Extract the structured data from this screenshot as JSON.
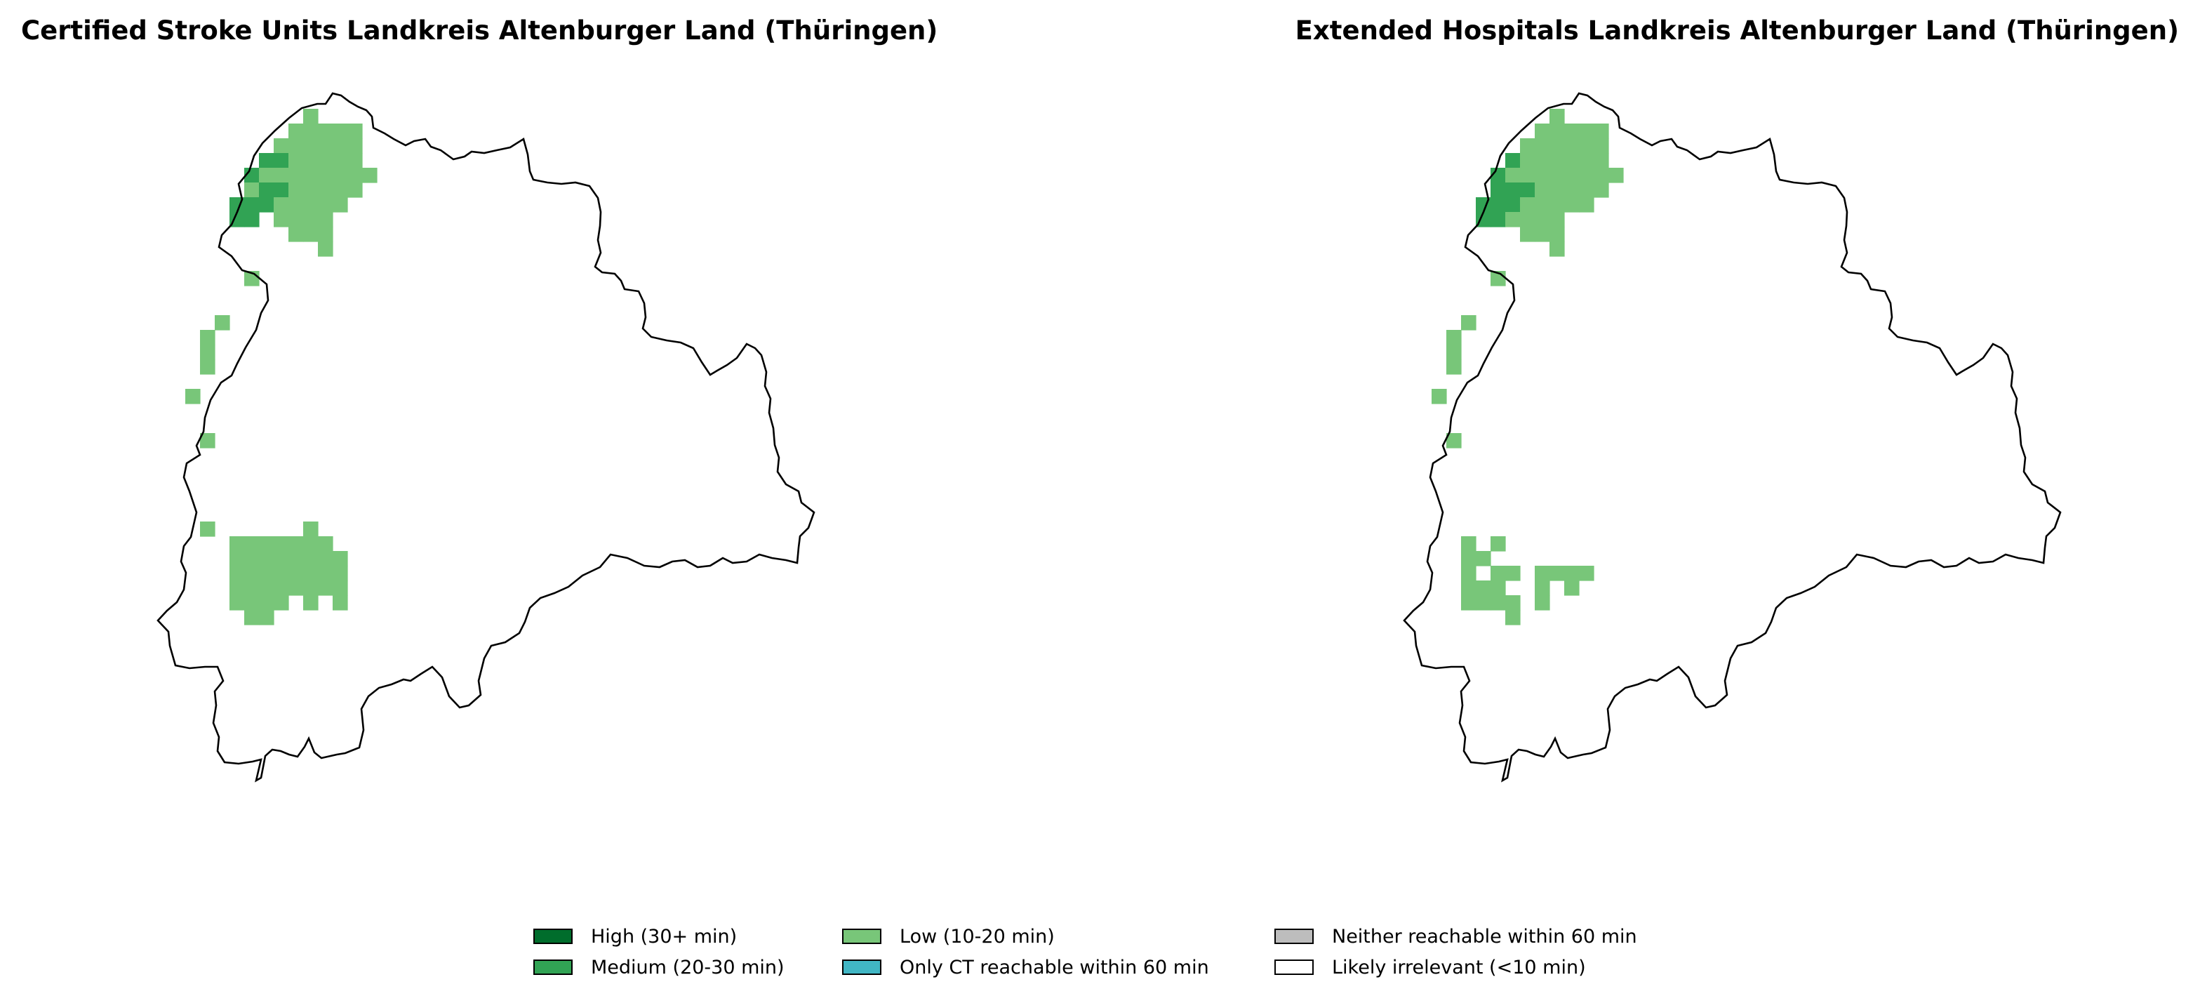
{
  "panels": [
    {
      "title": "Certified Stroke Units Landkreis Altenburger Land (Thüringen)",
      "region": "Landkreis Altenburger Land (Thüringen)",
      "cells": [
        {
          "col": 8,
          "row": 0,
          "level": "low"
        },
        {
          "col": 7,
          "row": 1,
          "level": "low"
        },
        {
          "col": 8,
          "row": 1,
          "level": "low"
        },
        {
          "col": 9,
          "row": 1,
          "level": "low"
        },
        {
          "col": 10,
          "row": 1,
          "level": "low"
        },
        {
          "col": 11,
          "row": 1,
          "level": "low"
        },
        {
          "col": 6,
          "row": 2,
          "level": "low"
        },
        {
          "col": 7,
          "row": 2,
          "level": "low"
        },
        {
          "col": 8,
          "row": 2,
          "level": "low"
        },
        {
          "col": 9,
          "row": 2,
          "level": "low"
        },
        {
          "col": 10,
          "row": 2,
          "level": "low"
        },
        {
          "col": 11,
          "row": 2,
          "level": "low"
        },
        {
          "col": 5,
          "row": 3,
          "level": "medium"
        },
        {
          "col": 6,
          "row": 3,
          "level": "medium"
        },
        {
          "col": 7,
          "row": 3,
          "level": "low"
        },
        {
          "col": 8,
          "row": 3,
          "level": "low"
        },
        {
          "col": 9,
          "row": 3,
          "level": "low"
        },
        {
          "col": 10,
          "row": 3,
          "level": "low"
        },
        {
          "col": 11,
          "row": 3,
          "level": "low"
        },
        {
          "col": 4,
          "row": 4,
          "level": "medium"
        },
        {
          "col": 5,
          "row": 4,
          "level": "low"
        },
        {
          "col": 6,
          "row": 4,
          "level": "low"
        },
        {
          "col": 7,
          "row": 4,
          "level": "low"
        },
        {
          "col": 8,
          "row": 4,
          "level": "low"
        },
        {
          "col": 9,
          "row": 4,
          "level": "low"
        },
        {
          "col": 10,
          "row": 4,
          "level": "low"
        },
        {
          "col": 11,
          "row": 4,
          "level": "low"
        },
        {
          "col": 12,
          "row": 4,
          "level": "low"
        },
        {
          "col": 4,
          "row": 5,
          "level": "low"
        },
        {
          "col": 5,
          "row": 5,
          "level": "medium"
        },
        {
          "col": 6,
          "row": 5,
          "level": "medium"
        },
        {
          "col": 7,
          "row": 5,
          "level": "low"
        },
        {
          "col": 8,
          "row": 5,
          "level": "low"
        },
        {
          "col": 9,
          "row": 5,
          "level": "low"
        },
        {
          "col": 10,
          "row": 5,
          "level": "low"
        },
        {
          "col": 11,
          "row": 5,
          "level": "low"
        },
        {
          "col": 3,
          "row": 6,
          "level": "medium"
        },
        {
          "col": 4,
          "row": 6,
          "level": "medium"
        },
        {
          "col": 5,
          "row": 6,
          "level": "medium"
        },
        {
          "col": 6,
          "row": 6,
          "level": "low"
        },
        {
          "col": 7,
          "row": 6,
          "level": "low"
        },
        {
          "col": 8,
          "row": 6,
          "level": "low"
        },
        {
          "col": 9,
          "row": 6,
          "level": "low"
        },
        {
          "col": 10,
          "row": 6,
          "level": "low"
        },
        {
          "col": 3,
          "row": 7,
          "level": "medium"
        },
        {
          "col": 4,
          "row": 7,
          "level": "medium"
        },
        {
          "col": 6,
          "row": 7,
          "level": "low"
        },
        {
          "col": 7,
          "row": 7,
          "level": "low"
        },
        {
          "col": 8,
          "row": 7,
          "level": "low"
        },
        {
          "col": 9,
          "row": 7,
          "level": "low"
        },
        {
          "col": 7,
          "row": 8,
          "level": "low"
        },
        {
          "col": 8,
          "row": 8,
          "level": "low"
        },
        {
          "col": 9,
          "row": 8,
          "level": "low"
        },
        {
          "col": 9,
          "row": 9,
          "level": "low"
        },
        {
          "col": 4,
          "row": 11,
          "level": "low"
        },
        {
          "col": 2,
          "row": 14,
          "level": "low"
        },
        {
          "col": 1,
          "row": 15,
          "level": "low"
        },
        {
          "col": 1,
          "row": 16,
          "level": "low"
        },
        {
          "col": 1,
          "row": 17,
          "level": "low"
        },
        {
          "col": 0,
          "row": 19,
          "level": "low"
        },
        {
          "col": 1,
          "row": 22,
          "level": "low"
        },
        {
          "col": 1,
          "row": 28,
          "level": "low"
        },
        {
          "col": 8,
          "row": 28,
          "level": "low"
        },
        {
          "col": 3,
          "row": 29,
          "level": "low"
        },
        {
          "col": 4,
          "row": 29,
          "level": "low"
        },
        {
          "col": 5,
          "row": 29,
          "level": "low"
        },
        {
          "col": 6,
          "row": 29,
          "level": "low"
        },
        {
          "col": 7,
          "row": 29,
          "level": "low"
        },
        {
          "col": 8,
          "row": 29,
          "level": "low"
        },
        {
          "col": 9,
          "row": 29,
          "level": "low"
        },
        {
          "col": 3,
          "row": 30,
          "level": "low"
        },
        {
          "col": 4,
          "row": 30,
          "level": "low"
        },
        {
          "col": 5,
          "row": 30,
          "level": "low"
        },
        {
          "col": 6,
          "row": 30,
          "level": "low"
        },
        {
          "col": 7,
          "row": 30,
          "level": "low"
        },
        {
          "col": 8,
          "row": 30,
          "level": "low"
        },
        {
          "col": 9,
          "row": 30,
          "level": "low"
        },
        {
          "col": 10,
          "row": 30,
          "level": "low"
        },
        {
          "col": 3,
          "row": 31,
          "level": "low"
        },
        {
          "col": 4,
          "row": 31,
          "level": "low"
        },
        {
          "col": 5,
          "row": 31,
          "level": "low"
        },
        {
          "col": 6,
          "row": 31,
          "level": "low"
        },
        {
          "col": 7,
          "row": 31,
          "level": "low"
        },
        {
          "col": 8,
          "row": 31,
          "level": "low"
        },
        {
          "col": 9,
          "row": 31,
          "level": "low"
        },
        {
          "col": 10,
          "row": 31,
          "level": "low"
        },
        {
          "col": 3,
          "row": 32,
          "level": "low"
        },
        {
          "col": 4,
          "row": 32,
          "level": "low"
        },
        {
          "col": 5,
          "row": 32,
          "level": "low"
        },
        {
          "col": 6,
          "row": 32,
          "level": "low"
        },
        {
          "col": 7,
          "row": 32,
          "level": "low"
        },
        {
          "col": 8,
          "row": 32,
          "level": "low"
        },
        {
          "col": 9,
          "row": 32,
          "level": "low"
        },
        {
          "col": 10,
          "row": 32,
          "level": "low"
        },
        {
          "col": 3,
          "row": 33,
          "level": "low"
        },
        {
          "col": 4,
          "row": 33,
          "level": "low"
        },
        {
          "col": 5,
          "row": 33,
          "level": "low"
        },
        {
          "col": 6,
          "row": 33,
          "level": "low"
        },
        {
          "col": 8,
          "row": 33,
          "level": "low"
        },
        {
          "col": 10,
          "row": 33,
          "level": "low"
        },
        {
          "col": 4,
          "row": 34,
          "level": "low"
        },
        {
          "col": 5,
          "row": 34,
          "level": "low"
        }
      ]
    },
    {
      "title": "Extended Hospitals Landkreis Altenburger Land (Thüringen)",
      "region": "Landkreis Altenburger Land (Thüringen)",
      "cells": [
        {
          "col": 8,
          "row": 0,
          "level": "low"
        },
        {
          "col": 7,
          "row": 1,
          "level": "low"
        },
        {
          "col": 8,
          "row": 1,
          "level": "low"
        },
        {
          "col": 9,
          "row": 1,
          "level": "low"
        },
        {
          "col": 10,
          "row": 1,
          "level": "low"
        },
        {
          "col": 11,
          "row": 1,
          "level": "low"
        },
        {
          "col": 6,
          "row": 2,
          "level": "low"
        },
        {
          "col": 7,
          "row": 2,
          "level": "low"
        },
        {
          "col": 8,
          "row": 2,
          "level": "low"
        },
        {
          "col": 9,
          "row": 2,
          "level": "low"
        },
        {
          "col": 10,
          "row": 2,
          "level": "low"
        },
        {
          "col": 11,
          "row": 2,
          "level": "low"
        },
        {
          "col": 5,
          "row": 3,
          "level": "medium"
        },
        {
          "col": 6,
          "row": 3,
          "level": "low"
        },
        {
          "col": 7,
          "row": 3,
          "level": "low"
        },
        {
          "col": 8,
          "row": 3,
          "level": "low"
        },
        {
          "col": 9,
          "row": 3,
          "level": "low"
        },
        {
          "col": 10,
          "row": 3,
          "level": "low"
        },
        {
          "col": 11,
          "row": 3,
          "level": "low"
        },
        {
          "col": 4,
          "row": 4,
          "level": "medium"
        },
        {
          "col": 5,
          "row": 4,
          "level": "low"
        },
        {
          "col": 6,
          "row": 4,
          "level": "low"
        },
        {
          "col": 7,
          "row": 4,
          "level": "low"
        },
        {
          "col": 8,
          "row": 4,
          "level": "low"
        },
        {
          "col": 9,
          "row": 4,
          "level": "low"
        },
        {
          "col": 10,
          "row": 4,
          "level": "low"
        },
        {
          "col": 11,
          "row": 4,
          "level": "low"
        },
        {
          "col": 12,
          "row": 4,
          "level": "low"
        },
        {
          "col": 4,
          "row": 5,
          "level": "medium"
        },
        {
          "col": 5,
          "row": 5,
          "level": "medium"
        },
        {
          "col": 6,
          "row": 5,
          "level": "medium"
        },
        {
          "col": 7,
          "row": 5,
          "level": "low"
        },
        {
          "col": 8,
          "row": 5,
          "level": "low"
        },
        {
          "col": 9,
          "row": 5,
          "level": "low"
        },
        {
          "col": 10,
          "row": 5,
          "level": "low"
        },
        {
          "col": 11,
          "row": 5,
          "level": "low"
        },
        {
          "col": 3,
          "row": 6,
          "level": "medium"
        },
        {
          "col": 4,
          "row": 6,
          "level": "medium"
        },
        {
          "col": 5,
          "row": 6,
          "level": "medium"
        },
        {
          "col": 6,
          "row": 6,
          "level": "low"
        },
        {
          "col": 7,
          "row": 6,
          "level": "low"
        },
        {
          "col": 8,
          "row": 6,
          "level": "low"
        },
        {
          "col": 9,
          "row": 6,
          "level": "low"
        },
        {
          "col": 10,
          "row": 6,
          "level": "low"
        },
        {
          "col": 3,
          "row": 7,
          "level": "medium"
        },
        {
          "col": 4,
          "row": 7,
          "level": "medium"
        },
        {
          "col": 5,
          "row": 7,
          "level": "low"
        },
        {
          "col": 6,
          "row": 7,
          "level": "low"
        },
        {
          "col": 7,
          "row": 7,
          "level": "low"
        },
        {
          "col": 8,
          "row": 7,
          "level": "low"
        },
        {
          "col": 6,
          "row": 8,
          "level": "low"
        },
        {
          "col": 7,
          "row": 8,
          "level": "low"
        },
        {
          "col": 8,
          "row": 8,
          "level": "low"
        },
        {
          "col": 8,
          "row": 9,
          "level": "low"
        },
        {
          "col": 4,
          "row": 11,
          "level": "low"
        },
        {
          "col": 2,
          "row": 14,
          "level": "low"
        },
        {
          "col": 1,
          "row": 15,
          "level": "low"
        },
        {
          "col": 1,
          "row": 16,
          "level": "low"
        },
        {
          "col": 1,
          "row": 17,
          "level": "low"
        },
        {
          "col": 0,
          "row": 19,
          "level": "low"
        },
        {
          "col": 1,
          "row": 22,
          "level": "low"
        },
        {
          "col": 2,
          "row": 29,
          "level": "low"
        },
        {
          "col": 4,
          "row": 29,
          "level": "low"
        },
        {
          "col": 2,
          "row": 30,
          "level": "low"
        },
        {
          "col": 3,
          "row": 30,
          "level": "low"
        },
        {
          "col": 2,
          "row": 31,
          "level": "low"
        },
        {
          "col": 4,
          "row": 31,
          "level": "low"
        },
        {
          "col": 5,
          "row": 31,
          "level": "low"
        },
        {
          "col": 7,
          "row": 31,
          "level": "low"
        },
        {
          "col": 8,
          "row": 31,
          "level": "low"
        },
        {
          "col": 9,
          "row": 31,
          "level": "low"
        },
        {
          "col": 10,
          "row": 31,
          "level": "low"
        },
        {
          "col": 2,
          "row": 32,
          "level": "low"
        },
        {
          "col": 3,
          "row": 32,
          "level": "low"
        },
        {
          "col": 4,
          "row": 32,
          "level": "low"
        },
        {
          "col": 7,
          "row": 32,
          "level": "low"
        },
        {
          "col": 9,
          "row": 32,
          "level": "low"
        },
        {
          "col": 2,
          "row": 33,
          "level": "low"
        },
        {
          "col": 3,
          "row": 33,
          "level": "low"
        },
        {
          "col": 4,
          "row": 33,
          "level": "low"
        },
        {
          "col": 5,
          "row": 33,
          "level": "low"
        },
        {
          "col": 7,
          "row": 33,
          "level": "low"
        },
        {
          "col": 5,
          "row": 34,
          "level": "low"
        }
      ]
    }
  ],
  "legend": [
    {
      "key": "high",
      "label": "High (30+ min)",
      "color": "#006d2c"
    },
    {
      "key": "medium",
      "label": "Medium (20-30 min)",
      "color": "#31a354"
    },
    {
      "key": "low",
      "label": "Low (10-20 min)",
      "color": "#78c679"
    },
    {
      "key": "ct_only",
      "label": "Only CT reachable within 60 min",
      "color": "#41b6c4"
    },
    {
      "key": "neither",
      "label": "Neither reachable within 60 min",
      "color": "#bdbdbd"
    },
    {
      "key": "irrelevant",
      "label": "Likely irrelevant (<10 min)",
      "color": "#ffffff"
    }
  ],
  "outline_color": "#000000"
}
